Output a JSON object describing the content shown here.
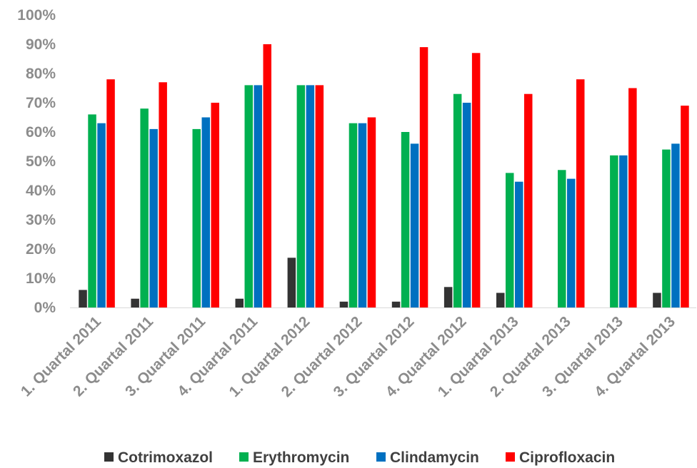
{
  "chart_data": {
    "type": "bar",
    "title": "",
    "xlabel": "",
    "ylabel": "",
    "ylim": [
      0,
      100
    ],
    "yticks": [
      "0%",
      "10%",
      "20%",
      "30%",
      "40%",
      "50%",
      "60%",
      "70%",
      "80%",
      "90%",
      "100%"
    ],
    "grid": false,
    "legend_position": "bottom",
    "categories": [
      "1. Quartal 2011",
      "2. Quartal 2011",
      "3. Quartal 2011",
      "4. Quartal 2011",
      "1. Quartal 2012",
      "2. Quartal 2012",
      "3. Quartal 2012",
      "4. Quartal 2012",
      "1. Quartal 2013",
      "2. Quartal 2013",
      "3. Quartal 2013",
      "4. Quartal 2013"
    ],
    "series": [
      {
        "name": "Cotrimoxazol",
        "color": "#333333",
        "values": [
          6,
          3,
          0,
          3,
          17,
          2,
          2,
          7,
          5,
          0,
          0,
          5
        ]
      },
      {
        "name": "Erythromycin",
        "color": "#00b050",
        "values": [
          66,
          68,
          61,
          76,
          76,
          63,
          60,
          73,
          46,
          47,
          52,
          54
        ]
      },
      {
        "name": "Clindamycin",
        "color": "#0070c0",
        "values": [
          63,
          61,
          65,
          76,
          76,
          63,
          56,
          70,
          43,
          44,
          52,
          56
        ]
      },
      {
        "name": "Ciprofloxacin",
        "color": "#ff0000",
        "values": [
          78,
          77,
          70,
          90,
          76,
          65,
          89,
          87,
          73,
          78,
          75,
          69
        ]
      }
    ]
  }
}
